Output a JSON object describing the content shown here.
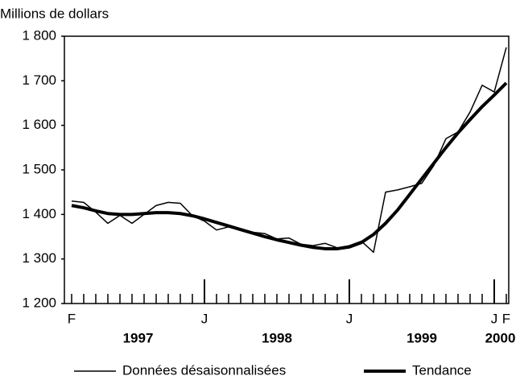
{
  "chart_data": {
    "type": "line",
    "y_axis_label": "Millions de dollars",
    "categories": [
      "F",
      null,
      null,
      null,
      null,
      null,
      null,
      null,
      null,
      null,
      null,
      "J",
      null,
      null,
      null,
      null,
      null,
      null,
      null,
      null,
      null,
      null,
      null,
      "J",
      null,
      null,
      null,
      null,
      null,
      null,
      null,
      null,
      null,
      null,
      null,
      "J",
      "F"
    ],
    "year_labels": [
      "1997",
      "1998",
      "1999",
      "2000"
    ],
    "series": [
      {
        "name": "Données désaisonnalisées",
        "color": "#000000",
        "width": 1.5,
        "values": [
          1430,
          1427,
          1405,
          1380,
          1398,
          1380,
          1400,
          1420,
          1427,
          1425,
          1397,
          1385,
          1365,
          1372,
          1368,
          1360,
          1357,
          1345,
          1347,
          1333,
          1330,
          1335,
          1325,
          1330,
          1340,
          1315,
          1450,
          1455,
          1462,
          1470,
          1510,
          1570,
          1585,
          1630,
          1690,
          1675,
          1775
        ]
      },
      {
        "name": "Tendance",
        "color": "#000000",
        "width": 4,
        "values": [
          1420,
          1415,
          1408,
          1402,
          1400,
          1400,
          1402,
          1404,
          1404,
          1402,
          1397,
          1390,
          1382,
          1374,
          1366,
          1358,
          1350,
          1343,
          1337,
          1331,
          1326,
          1323,
          1323,
          1327,
          1337,
          1355,
          1380,
          1410,
          1445,
          1480,
          1515,
          1550,
          1583,
          1613,
          1642,
          1668,
          1695
        ]
      }
    ],
    "ylim": [
      1200,
      1800
    ],
    "yticks": [
      {
        "value": 1200,
        "label": "1 200"
      },
      {
        "value": 1300,
        "label": "1 300"
      },
      {
        "value": 1400,
        "label": "1 400"
      },
      {
        "value": 1500,
        "label": "1 500"
      },
      {
        "value": 1600,
        "label": "1 600"
      },
      {
        "value": 1700,
        "label": "1 700"
      },
      {
        "value": 1800,
        "label": "1 800"
      }
    ],
    "grid": false
  }
}
